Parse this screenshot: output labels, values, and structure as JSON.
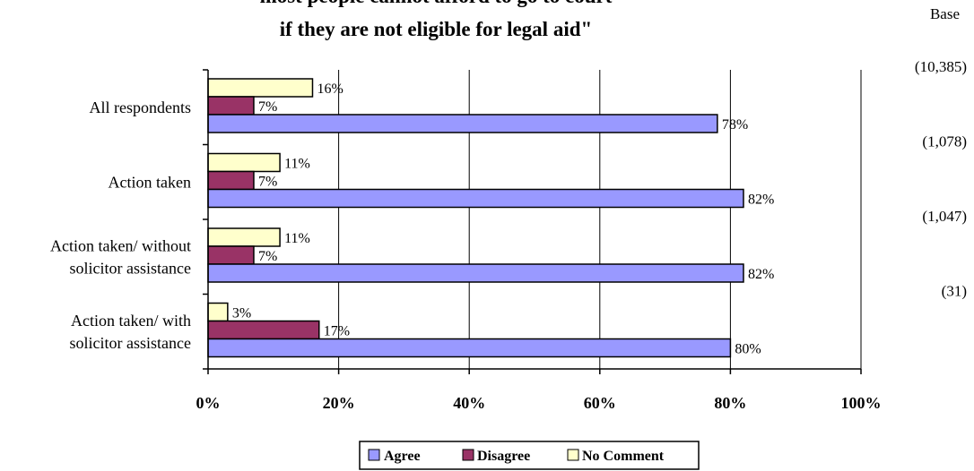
{
  "chart_data": {
    "type": "bar",
    "orientation": "horizontal",
    "title": "most people cannot afford to go to court if they are not eligible for legal aid\"",
    "title_lines": [
      "most people cannot afford to go to court",
      "if they are not eligible for legal aid\""
    ],
    "categories": [
      "All respondents",
      "Action taken",
      "Action taken/ without solicitor assistance",
      "Action taken/ with solicitor assistance"
    ],
    "category_lines": [
      [
        "All respondents"
      ],
      [
        "Action taken"
      ],
      [
        "Action taken/ without",
        "solicitor assistance"
      ],
      [
        "Action taken/ with",
        "solicitor assistance"
      ]
    ],
    "base_header": "Base",
    "bases": [
      "(10,385)",
      "(1,078)",
      "(1,047)",
      "(31)"
    ],
    "series": [
      {
        "name": "Agree",
        "color": "#9999ff",
        "values": [
          78,
          82,
          82,
          80
        ],
        "labels": [
          "78%",
          "82%",
          "82%",
          "80%"
        ]
      },
      {
        "name": "Disagree",
        "color": "#993366",
        "values": [
          7,
          7,
          7,
          17
        ],
        "labels": [
          "7%",
          "7%",
          "7%",
          "17%"
        ]
      },
      {
        "name": "No Comment",
        "color": "#ffffcc",
        "values": [
          16,
          11,
          11,
          3
        ],
        "labels": [
          "16%",
          "11%",
          "11%",
          "3%"
        ]
      }
    ],
    "xlim": [
      0,
      100
    ],
    "ticks": [
      0,
      20,
      40,
      60,
      80,
      100
    ],
    "tick_labels": [
      "0%",
      "20%",
      "40%",
      "60%",
      "80%",
      "100%"
    ],
    "grid": true,
    "legend": "bottom-center"
  }
}
